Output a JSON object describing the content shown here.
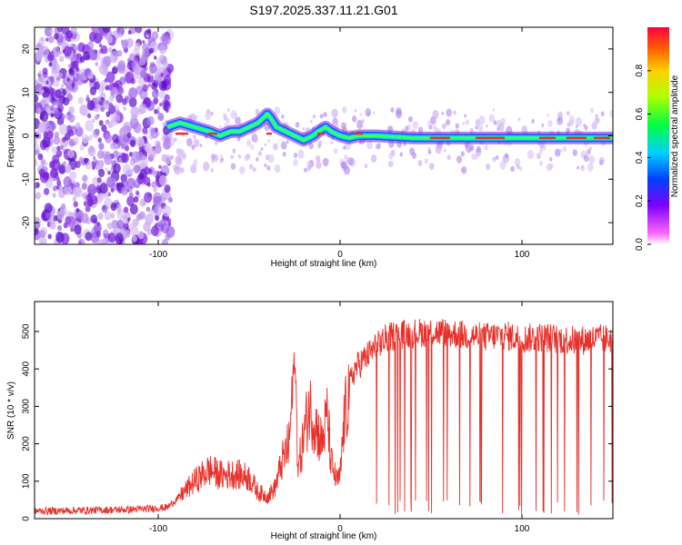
{
  "title": "S197.2025.337.11.21.G01",
  "colors": {
    "snr_line": "#e8302a",
    "track_core": "#e8302a",
    "scatter": "#7a1fe0",
    "axis": "#000000"
  },
  "chart_data": [
    {
      "type": "heatmap",
      "xlabel": "Height of straight line (km)",
      "ylabel": "Frequency (Hz)",
      "xlim": [
        -168,
        150
      ],
      "ylim": [
        -25,
        25
      ],
      "xticks": [
        -100,
        0,
        100
      ],
      "xtick_labels": [
        "-100",
        "0",
        "100"
      ],
      "yticks": [
        -20,
        -10,
        0,
        10,
        20
      ],
      "ytick_labels": [
        "-20",
        "-10",
        "0",
        "10",
        "20"
      ],
      "track": {
        "x": [
          -95,
          -88,
          -80,
          -72,
          -66,
          -60,
          -55,
          -50,
          -45,
          -40,
          -38,
          -35,
          -30,
          -25,
          -20,
          -15,
          -12,
          -8,
          -5,
          0,
          5,
          10,
          20,
          40,
          60,
          80,
          100,
          120,
          150
        ],
        "freq": [
          2,
          3,
          2,
          1,
          0,
          1,
          1,
          2,
          3,
          5,
          4,
          2,
          1,
          0,
          -1,
          0,
          1,
          2,
          1,
          0,
          -0.5,
          0,
          0,
          -0.5,
          -0.5,
          -0.5,
          -0.5,
          -0.5,
          -0.5
        ]
      },
      "colorbar": {
        "label": "Normalized spectral amplitude",
        "range": [
          0,
          1
        ],
        "ticks": [
          0.0,
          0.2,
          0.4,
          0.6,
          0.8
        ],
        "tick_labels": [
          "0.0",
          "0.2",
          "0.4",
          "0.6",
          "0.8"
        ]
      }
    },
    {
      "type": "line",
      "xlabel": "Height of straight line (km)",
      "ylabel": "SNR (10 * v/v)",
      "xlim": [
        -168,
        150
      ],
      "ylim": [
        0,
        580
      ],
      "xticks": [
        -100,
        0,
        100
      ],
      "xtick_labels": [
        "-100",
        "0",
        "100"
      ],
      "yticks": [
        0,
        100,
        200,
        300,
        400,
        500
      ],
      "ytick_labels": [
        "0",
        "100",
        "200",
        "300",
        "400",
        "500"
      ],
      "series": [
        {
          "name": "SNR",
          "x": [
            -168,
            -140,
            -110,
            -95,
            -88,
            -80,
            -72,
            -65,
            -58,
            -50,
            -45,
            -40,
            -36,
            -32,
            -28,
            -25,
            -23,
            -20,
            -17,
            -14,
            -10,
            -7,
            -5,
            -2,
            0,
            2,
            5,
            8,
            12,
            16,
            20,
            25,
            30,
            40,
            50,
            60,
            70,
            80,
            90,
            100,
            110,
            120,
            130,
            140,
            150
          ],
          "y": [
            20,
            22,
            25,
            30,
            60,
            100,
            130,
            115,
            120,
            110,
            70,
            60,
            80,
            150,
            200,
            440,
            130,
            220,
            300,
            260,
            200,
            280,
            150,
            100,
            110,
            250,
            350,
            400,
            420,
            440,
            460,
            480,
            490,
            495,
            500,
            495,
            490,
            485,
            490,
            480,
            485,
            480,
            475,
            480,
            480
          ]
        }
      ]
    }
  ]
}
